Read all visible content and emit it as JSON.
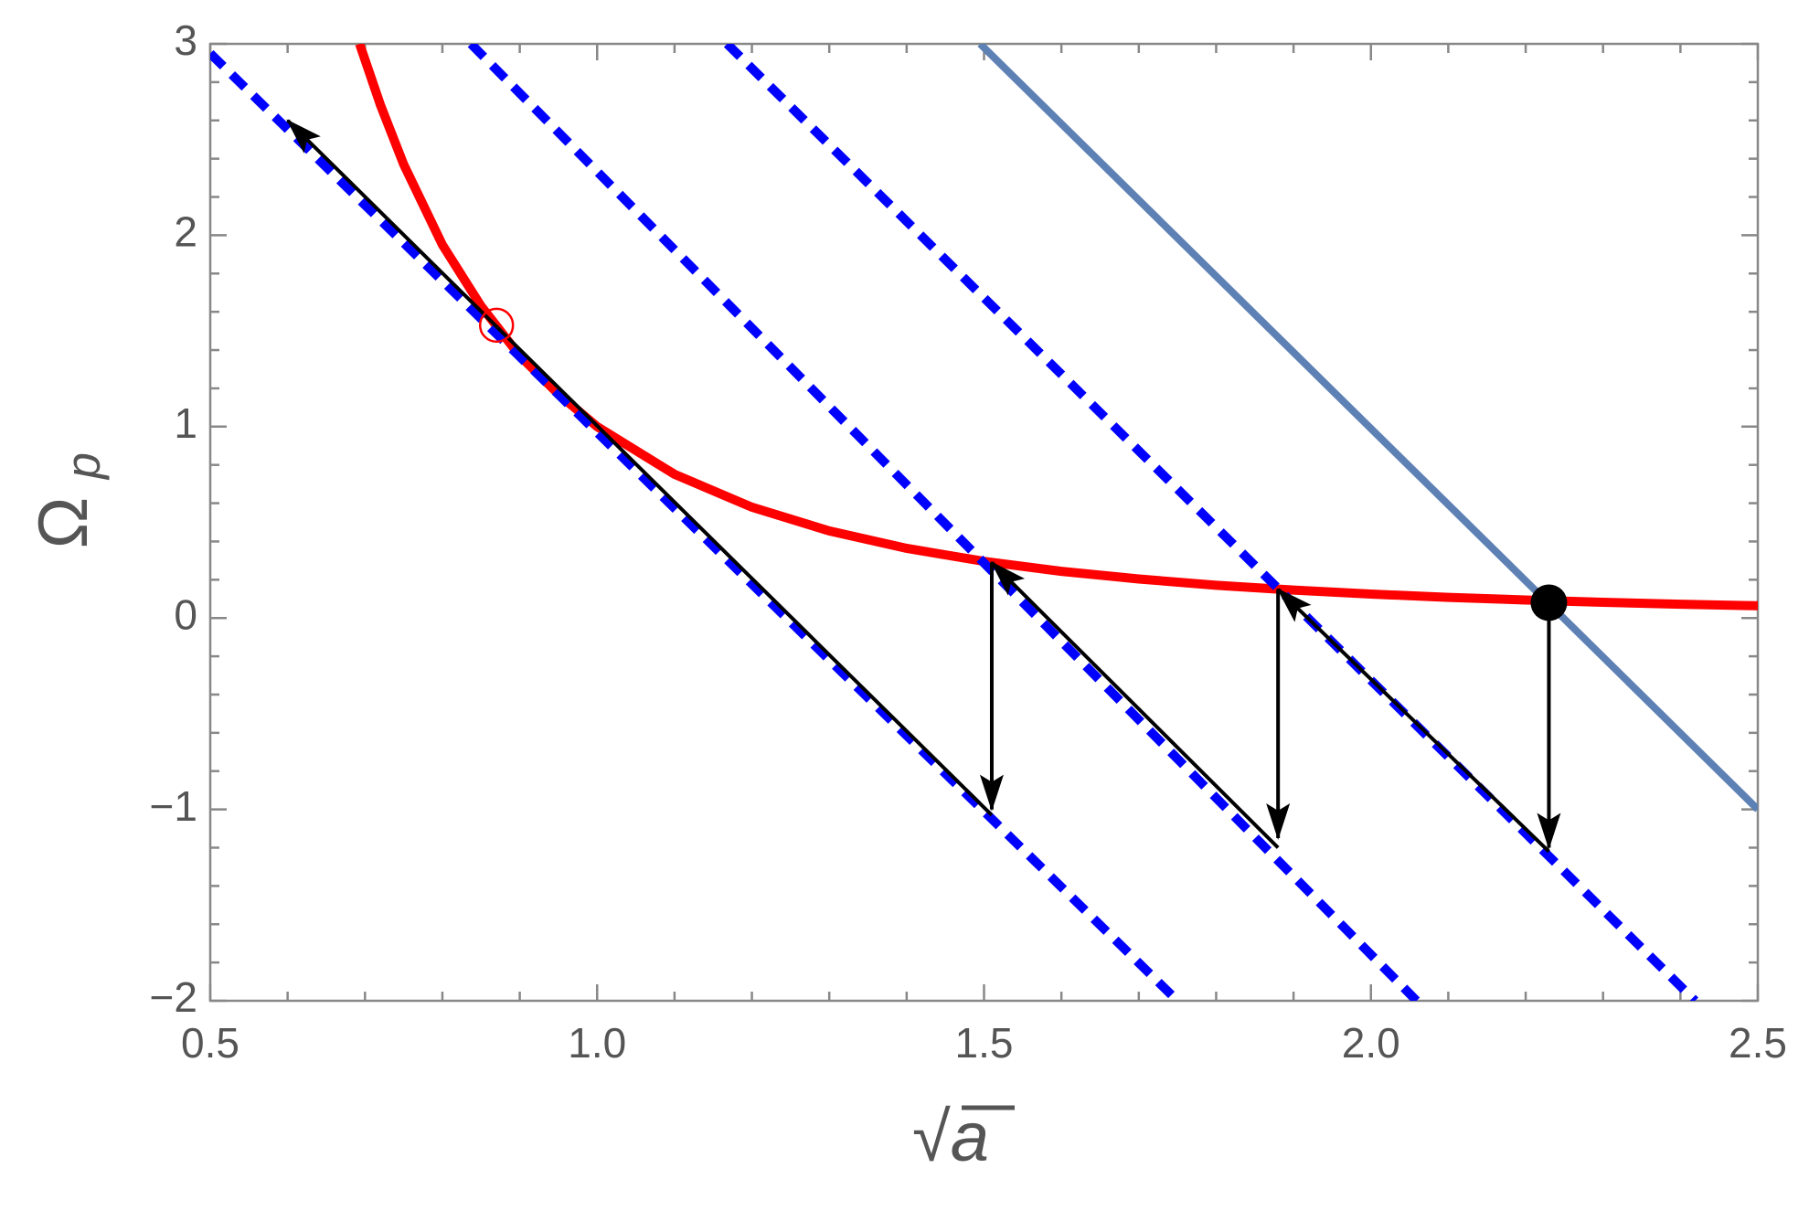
{
  "chart_data": {
    "type": "line",
    "xlabel": "√a",
    "ylabel": "Ω",
    "ylabel_sub": "p",
    "xlim": [
      0.5,
      2.5
    ],
    "ylim": [
      -2,
      3
    ],
    "xticks": [
      {
        "value": 0.5,
        "label": "0.5"
      },
      {
        "value": 1,
        "label": "1.0"
      },
      {
        "value": 1.5,
        "label": "1.5"
      },
      {
        "value": 2,
        "label": "2.0"
      },
      {
        "value": 2.5,
        "label": "2.5"
      }
    ],
    "yticks": [
      {
        "value": -2,
        "label": "−2"
      },
      {
        "value": -1,
        "label": "−1"
      },
      0,
      1,
      2,
      3
    ],
    "xminorticks": [
      0.6,
      0.7,
      0.8,
      0.9,
      1.1,
      1.2,
      1.3,
      1.4,
      1.6,
      1.7,
      1.8,
      1.9,
      2.1,
      2.2,
      2.3,
      2.4
    ],
    "yminorticks": [
      -1.8,
      -1.6,
      -1.4,
      -1.2,
      -0.8,
      -0.6,
      -0.4,
      -0.2,
      0.2,
      0.4,
      0.6,
      0.8,
      1.2,
      1.4,
      1.6,
      1.8,
      2.2,
      2.4,
      2.6,
      2.8
    ],
    "series": [
      {
        "color": "#ff0000",
        "style": "solid",
        "x": [
          0.693,
          0.72,
          0.75,
          0.8,
          0.85,
          0.9,
          0.95,
          1.0,
          1.1,
          1.2,
          1.3,
          1.4,
          1.5,
          1.6,
          1.7,
          1.8,
          1.9,
          2.0,
          2.1,
          2.2,
          2.3,
          2.4,
          2.5
        ],
        "values": [
          3.0,
          2.68,
          2.37,
          1.95,
          1.63,
          1.37,
          1.17,
          1.0,
          0.751,
          0.579,
          0.455,
          0.364,
          0.296,
          0.244,
          0.204,
          0.171,
          0.146,
          0.125,
          0.108,
          0.094,
          0.082,
          0.072,
          0.064
        ]
      },
      {
        "color": "#0000ff",
        "style": "dashed",
        "x": [
          0.5,
          1.75
        ],
        "values": [
          2.95,
          -2
        ]
      },
      {
        "color": "#0000ff",
        "style": "dashed",
        "x": [
          0.837,
          2.059
        ],
        "values": [
          3,
          -2
        ]
      },
      {
        "color": "#0000ff",
        "style": "dashed",
        "x": [
          1.168,
          2.419
        ],
        "values": [
          3,
          -2
        ]
      },
      {
        "color": "#5e81b5",
        "style": "solid",
        "x": [
          1.495,
          2.5
        ],
        "values": [
          3,
          -1
        ]
      }
    ],
    "arrows": [
      {
        "x": [
          1.51,
          0.6
        ],
        "values": [
          -1.03,
          2.6
        ]
      },
      {
        "x": [
          1.51,
          1.51
        ],
        "values": [
          0.29,
          -1.0
        ]
      },
      {
        "x": [
          1.88,
          1.51
        ],
        "values": [
          -1.2,
          0.29
        ]
      },
      {
        "x": [
          1.88,
          1.88
        ],
        "values": [
          0.15,
          -1.15
        ]
      },
      {
        "x": [
          2.23,
          1.88
        ],
        "values": [
          -1.22,
          0.15
        ]
      },
      {
        "x": [
          2.23,
          2.23
        ],
        "values": [
          0.08,
          -1.2
        ]
      }
    ],
    "points": [
      {
        "x": 2.23,
        "value": 0.08,
        "color": "#000000",
        "filled": true
      },
      {
        "x": 0.87,
        "value": 1.53,
        "color": "#ff0000",
        "filled": false
      }
    ]
  }
}
